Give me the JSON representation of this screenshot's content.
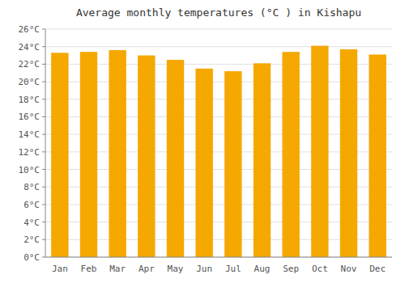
{
  "chart_data": {
    "type": "bar",
    "title": "Average monthly temperatures (°C ) in Kishapu",
    "categories": [
      "Jan",
      "Feb",
      "Mar",
      "Apr",
      "May",
      "Jun",
      "Jul",
      "Aug",
      "Sep",
      "Oct",
      "Nov",
      "Dec"
    ],
    "values": [
      23.3,
      23.4,
      23.6,
      23.0,
      22.5,
      21.5,
      21.2,
      22.1,
      23.4,
      24.1,
      23.7,
      23.1
    ],
    "color": "#F5A800",
    "ylim": [
      0,
      26
    ],
    "yticks": [
      {
        "value": 0,
        "label": "0°C"
      },
      {
        "value": 2,
        "label": "2°C"
      },
      {
        "value": 4,
        "label": "4°C"
      },
      {
        "value": 6,
        "label": "6°C"
      },
      {
        "value": 8,
        "label": "8°C"
      },
      {
        "value": 10,
        "label": "10°C"
      },
      {
        "value": 12,
        "label": "12°C"
      },
      {
        "value": 14,
        "label": "14°C"
      },
      {
        "value": 16,
        "label": "16°C"
      },
      {
        "value": 18,
        "label": "18°C"
      },
      {
        "value": 20,
        "label": "20°C"
      },
      {
        "value": 22,
        "label": "22°C"
      },
      {
        "value": 24,
        "label": "24°C"
      },
      {
        "value": 26,
        "label": "26°C"
      }
    ],
    "grid": true
  }
}
